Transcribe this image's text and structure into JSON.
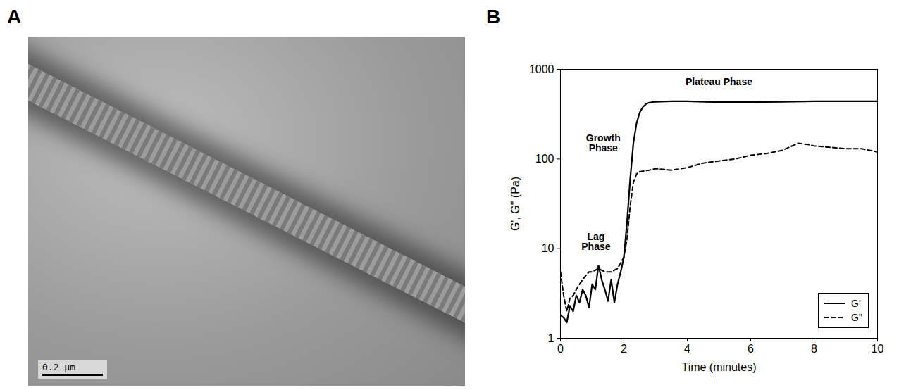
{
  "panel_a": {
    "panel_label": "A",
    "scale_bar": "0.2 μm"
  },
  "chart_data": {
    "panel_label": "B",
    "type": "line",
    "x_label": "Time (minutes)",
    "y_label": "G', G\" (Pa)",
    "log": "y",
    "grid": false,
    "legend": "bottom-right",
    "xlim": [
      0,
      10
    ],
    "xticks": [
      0,
      2,
      4,
      6,
      8,
      10
    ],
    "ylim": [
      1,
      1000
    ],
    "yticks": [
      1,
      10,
      100,
      1000
    ],
    "annotations": [
      "Lag Phase",
      "Growth Phase",
      "Plateau Phase"
    ],
    "series": [
      {
        "name": "G'",
        "color": "#000000",
        "line_style": "solid",
        "x": [
          0,
          0.1,
          0.2,
          0.3,
          0.4,
          0.5,
          0.6,
          0.7,
          0.8,
          0.9,
          1.0,
          1.1,
          1.2,
          1.3,
          1.4,
          1.5,
          1.6,
          1.7,
          1.8,
          1.9,
          2.0,
          2.1,
          2.2,
          2.3,
          2.4,
          2.5,
          2.6,
          2.7,
          2.8,
          3.0,
          3.5,
          4,
          5,
          6,
          7,
          8,
          9,
          10
        ],
        "values": [
          1.8,
          1.7,
          1.5,
          2.3,
          2.0,
          3.0,
          2.5,
          3.5,
          3.0,
          2.2,
          4.0,
          3.5,
          6.5,
          4.5,
          3.5,
          2.6,
          4.5,
          2.5,
          4.0,
          5.5,
          8,
          20,
          60,
          150,
          250,
          330,
          380,
          410,
          425,
          435,
          440,
          440,
          430,
          430,
          435,
          440,
          440,
          440
        ]
      },
      {
        "name": "G\"",
        "color": "#000000",
        "line_style": "dashed",
        "x": [
          0,
          0.1,
          0.2,
          0.3,
          0.4,
          0.5,
          0.6,
          0.7,
          0.8,
          0.9,
          1.0,
          1.2,
          1.4,
          1.6,
          1.8,
          2.0,
          2.1,
          2.2,
          2.3,
          2.4,
          2.5,
          2.8,
          3.0,
          3.5,
          4.0,
          4.5,
          5.0,
          5.5,
          6.0,
          6.5,
          7.0,
          7.5,
          7.8,
          8.0,
          8.5,
          9.0,
          9.5,
          10
        ],
        "values": [
          5.5,
          3,
          2,
          2.8,
          3,
          3.5,
          4,
          4.5,
          5,
          5.5,
          5.5,
          6,
          5.5,
          5.5,
          6,
          8,
          13,
          30,
          55,
          68,
          72,
          75,
          78,
          75,
          80,
          90,
          95,
          100,
          110,
          115,
          125,
          150,
          145,
          140,
          135,
          130,
          130,
          120
        ]
      }
    ]
  }
}
